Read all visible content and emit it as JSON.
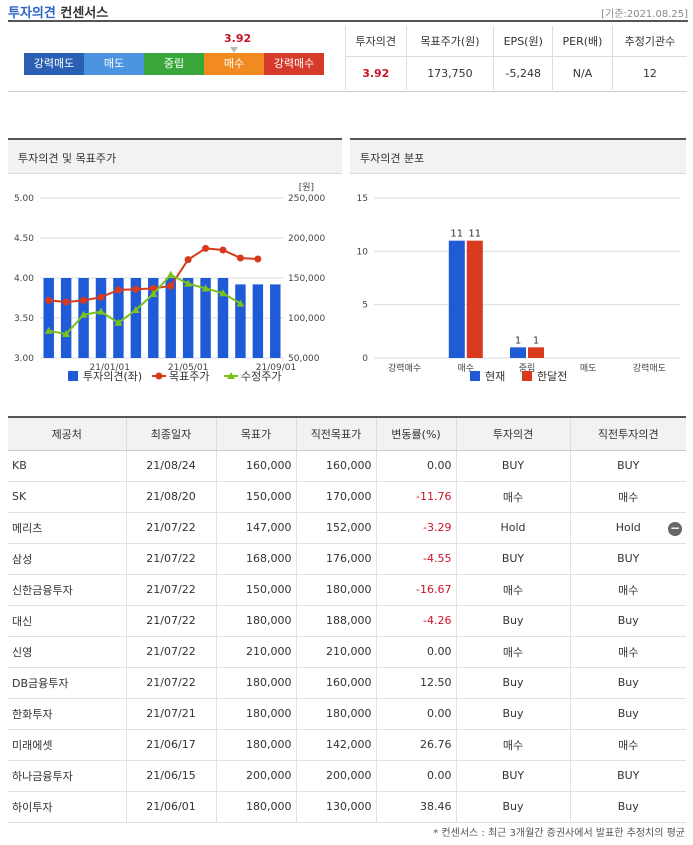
{
  "header": {
    "title_part1": "투자의견",
    "title_part2": "컨센서스",
    "basis": "[기준:2021.08.25]"
  },
  "gauge": {
    "value_label": "3.92",
    "segments": [
      {
        "label": "강력매도",
        "color": "#2a5fb4"
      },
      {
        "label": "매도",
        "color": "#4c93e0"
      },
      {
        "label": "중립",
        "color": "#3aa73a"
      },
      {
        "label": "매수",
        "color": "#f28a22"
      },
      {
        "label": "강력매수",
        "color": "#d63a2a"
      }
    ]
  },
  "summary": {
    "headers": [
      "투자의견",
      "목표주가(원)",
      "EPS(원)",
      "PER(배)",
      "추정기관수"
    ],
    "values": [
      "3.92",
      "173,750",
      "-5,248",
      "N/A",
      "12"
    ]
  },
  "panels": {
    "left_title": "투자의견 및 목표주가",
    "right_title": "투자의견 분포"
  },
  "chart_data": [
    {
      "type": "bar+line",
      "title": "투자의견 및 목표주가",
      "unit_label": "[원]",
      "x_tick_labels": [
        "21/01/01",
        "21/05/01",
        "21/09/01"
      ],
      "y_left_ticks": [
        "5.00",
        "4.50",
        "4.00",
        "3.50",
        "3.00"
      ],
      "y_right_ticks": [
        "250,000",
        "200,000",
        "150,000",
        "100,000",
        "50,000"
      ],
      "ylim_left": [
        3.0,
        5.0
      ],
      "ylim_right": [
        50000,
        250000
      ],
      "series": [
        {
          "name": "투자의견(좌)",
          "kind": "bar",
          "color": "#1f5bd6",
          "values": [
            4.0,
            4.0,
            4.0,
            4.0,
            4.0,
            4.0,
            4.0,
            4.0,
            4.0,
            4.0,
            4.0,
            3.92,
            3.92,
            3.92
          ]
        },
        {
          "name": "목표주가",
          "kind": "line",
          "color": "#d83a1e",
          "values": [
            122000,
            120000,
            122000,
            126000,
            135000,
            136000,
            137000,
            140000,
            173000,
            187000,
            185000,
            175000,
            173750
          ]
        },
        {
          "name": "수정주가",
          "kind": "line",
          "color": "#7ac21e",
          "values": [
            84000,
            80000,
            104000,
            108000,
            94000,
            110000,
            130000,
            154000,
            143000,
            137000,
            131000,
            118000
          ]
        }
      ]
    },
    {
      "type": "bar",
      "title": "투자의견 분포",
      "categories": [
        "강력매수",
        "매수",
        "중립",
        "매도",
        "강력매도"
      ],
      "y_ticks": [
        "15",
        "10",
        "5",
        "0"
      ],
      "ylim": [
        0,
        15
      ],
      "series": [
        {
          "name": "현재",
          "color": "#1f5bd6",
          "values": [
            0,
            11,
            1,
            0,
            0
          ]
        },
        {
          "name": "한달전",
          "color": "#d83a1e",
          "values": [
            0,
            11,
            1,
            0,
            0
          ]
        }
      ],
      "value_labels": [
        "11",
        "11",
        "1",
        "1"
      ]
    }
  ],
  "table": {
    "headers": [
      "제공처",
      "최종일자",
      "목표가",
      "직전목표가",
      "변동률(%)",
      "투자의견",
      "직전투자의견"
    ],
    "rows": [
      [
        "KB",
        "21/08/24",
        "160,000",
        "160,000",
        "0.00",
        "BUY",
        "BUY"
      ],
      [
        "SK",
        "21/08/20",
        "150,000",
        "170,000",
        "-11.76",
        "매수",
        "매수"
      ],
      [
        "메리츠",
        "21/07/22",
        "147,000",
        "152,000",
        "-3.29",
        "Hold",
        "Hold"
      ],
      [
        "삼성",
        "21/07/22",
        "168,000",
        "176,000",
        "-4.55",
        "BUY",
        "BUY"
      ],
      [
        "신한금융투자",
        "21/07/22",
        "150,000",
        "180,000",
        "-16.67",
        "매수",
        "매수"
      ],
      [
        "대신",
        "21/07/22",
        "180,000",
        "188,000",
        "-4.26",
        "Buy",
        "Buy"
      ],
      [
        "신영",
        "21/07/22",
        "210,000",
        "210,000",
        "0.00",
        "매수",
        "매수"
      ],
      [
        "DB금융투자",
        "21/07/22",
        "180,000",
        "160,000",
        "12.50",
        "Buy",
        "Buy"
      ],
      [
        "한화투자",
        "21/07/21",
        "180,000",
        "180,000",
        "0.00",
        "Buy",
        "Buy"
      ],
      [
        "미래에셋",
        "21/06/17",
        "180,000",
        "142,000",
        "26.76",
        "매수",
        "매수"
      ],
      [
        "하나금융투자",
        "21/06/15",
        "200,000",
        "200,000",
        "0.00",
        "BUY",
        "BUY"
      ],
      [
        "하이투자",
        "21/06/01",
        "180,000",
        "130,000",
        "38.46",
        "Buy",
        "Buy"
      ]
    ]
  },
  "footnote": "* 컨센서스 : 최근 3개월간 증권사에서 발표한 추정치의 평균"
}
